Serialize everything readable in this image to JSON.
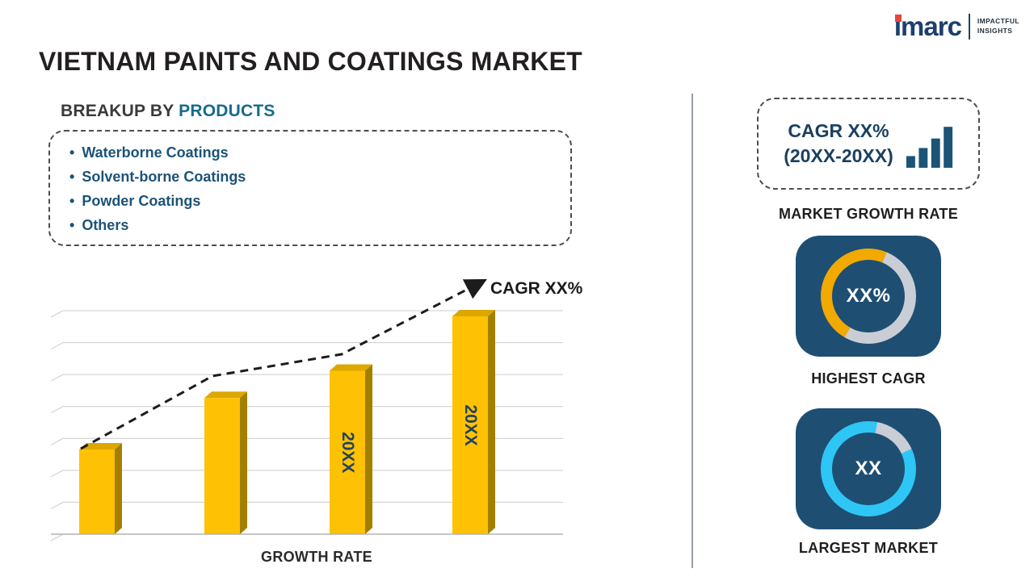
{
  "colors": {
    "title": "#231F20",
    "accent-navy": "#1C5377",
    "heading-highlight": "#176A8E",
    "bar-yellow": "#FFC104",
    "bar-side": "#A37F00",
    "bar-top": "#DCA800",
    "bar-label": "#24425F",
    "navy-card": "#1F4E73",
    "logo-navy": "#1E3F6E",
    "logo-red": "#E8453C"
  },
  "header": {
    "title": "VIETNAM PAINTS AND COATINGS MARKET",
    "logo": {
      "brand": "imarc",
      "tagline_line1": "IMPACTFUL",
      "tagline_line2": "INSIGHTS"
    }
  },
  "breakup": {
    "heading_prefix": "BREAKUP BY",
    "heading_highlight": "PRODUCTS",
    "items": [
      "Waterborne Coatings",
      "Solvent-borne Coatings",
      "Powder Coatings",
      "Others"
    ]
  },
  "chart_data": {
    "type": "bar",
    "categories": [
      "",
      "",
      "20XX",
      "20XX"
    ],
    "values": [
      28,
      45,
      54,
      72
    ],
    "ylim": [
      0,
      80
    ],
    "bar_labels": [
      "",
      "",
      "20XX",
      "20XX"
    ],
    "annotation": "CAGR XX%",
    "xlabel": "GROWTH RATE",
    "grid": true,
    "gridlines": 8,
    "trend": "dashed-arrow-up",
    "trend_points": [
      [
        45,
        216
      ],
      [
        208,
        126
      ],
      [
        368,
        99
      ],
      [
        540,
        10
      ]
    ]
  },
  "sidebar": {
    "growth_card": {
      "line1": "CAGR XX%",
      "line2": "(20XX-20XX)"
    },
    "growth_caption": "MARKET GROWTH RATE",
    "highest_cagr": {
      "value": "XX%",
      "caption": "HIGHEST CAGR",
      "donut": {
        "start_deg": 210,
        "percent": 48,
        "color": "#F2A900",
        "track": "#C9CED6"
      }
    },
    "largest_market": {
      "value": "XX",
      "caption": "LARGEST MARKET",
      "donut": {
        "start_deg": 65,
        "percent": 85,
        "color": "#2EC6F5",
        "track": "#C9CED6"
      }
    }
  }
}
